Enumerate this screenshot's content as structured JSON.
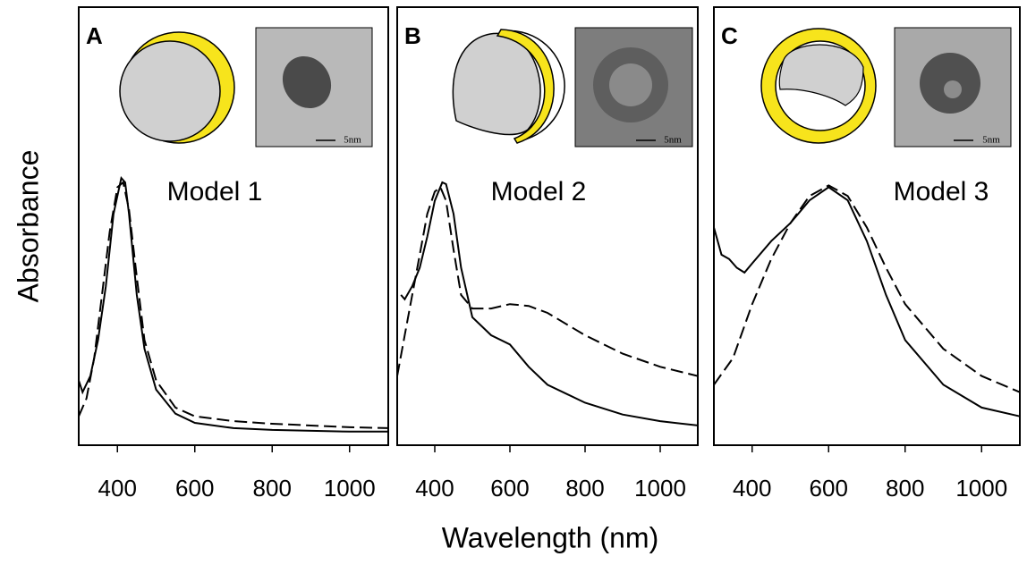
{
  "y_label": "Absorbance",
  "x_label": "Wavelength (nm)",
  "chart_data": [
    {
      "type": "line",
      "label": "A",
      "title": "Model 1",
      "scale_bar_label": "5nm",
      "xlim": [
        300,
        1100
      ],
      "ylim": [
        0,
        1
      ],
      "xticks": [
        400,
        600,
        800,
        1000
      ],
      "series": [
        {
          "color": "#000000",
          "dashed": false,
          "x": [
            300,
            310,
            330,
            350,
            370,
            390,
            410,
            420,
            430,
            450,
            470,
            500,
            550,
            600,
            700,
            800,
            1000,
            1100
          ],
          "values": [
            0.148,
            0.121,
            0.158,
            0.24,
            0.363,
            0.528,
            0.61,
            0.6,
            0.528,
            0.343,
            0.22,
            0.127,
            0.072,
            0.051,
            0.039,
            0.035,
            0.031,
            0.031
          ]
        },
        {
          "color": "#000000",
          "dashed": true,
          "x": [
            300,
            320,
            340,
            360,
            380,
            400,
            415,
            430,
            450,
            470,
            500,
            550,
            600,
            700,
            800,
            1000,
            1100
          ],
          "values": [
            0.066,
            0.107,
            0.199,
            0.343,
            0.487,
            0.589,
            0.6,
            0.538,
            0.384,
            0.24,
            0.148,
            0.086,
            0.066,
            0.055,
            0.049,
            0.041,
            0.039
          ]
        }
      ]
    },
    {
      "type": "line",
      "label": "B",
      "title": "Model 2",
      "scale_bar_label": "5nm",
      "xlim": [
        300,
        1100
      ],
      "ylim": [
        0,
        1
      ],
      "xticks": [
        400,
        600,
        800,
        1000
      ],
      "series": [
        {
          "color": "#000000",
          "dashed": false,
          "x": [
            310,
            320,
            340,
            360,
            380,
            400,
            420,
            430,
            450,
            470,
            500,
            550,
            600,
            650,
            700,
            800,
            900,
            1000,
            1100
          ],
          "values": [
            0.343,
            0.333,
            0.363,
            0.405,
            0.476,
            0.558,
            0.6,
            0.596,
            0.528,
            0.405,
            0.292,
            0.251,
            0.23,
            0.179,
            0.138,
            0.097,
            0.07,
            0.055,
            0.045
          ]
        },
        {
          "color": "#000000",
          "dashed": true,
          "x": [
            300,
            320,
            340,
            360,
            380,
            400,
            415,
            430,
            450,
            470,
            500,
            550,
            600,
            650,
            700,
            800,
            900,
            1000,
            1100
          ],
          "values": [
            0.158,
            0.251,
            0.343,
            0.435,
            0.528,
            0.579,
            0.589,
            0.558,
            0.446,
            0.343,
            0.312,
            0.312,
            0.322,
            0.318,
            0.302,
            0.251,
            0.209,
            0.179,
            0.158
          ]
        }
      ]
    },
    {
      "type": "line",
      "label": "C",
      "title": "Model 3",
      "scale_bar_label": "5nm",
      "xlim": [
        300,
        1100
      ],
      "ylim": [
        0,
        1
      ],
      "xticks": [
        400,
        600,
        800,
        1000
      ],
      "series": [
        {
          "color": "#000000",
          "dashed": false,
          "x": [
            300,
            320,
            340,
            360,
            380,
            400,
            450,
            500,
            550,
            600,
            650,
            700,
            750,
            800,
            900,
            1000,
            1100
          ],
          "values": [
            0.497,
            0.435,
            0.425,
            0.405,
            0.394,
            0.415,
            0.466,
            0.507,
            0.559,
            0.589,
            0.559,
            0.466,
            0.343,
            0.24,
            0.138,
            0.086,
            0.066
          ]
        },
        {
          "color": "#000000",
          "dashed": true,
          "x": [
            300,
            350,
            400,
            450,
            500,
            550,
            600,
            650,
            700,
            750,
            800,
            900,
            1000,
            1100
          ],
          "values": [
            0.138,
            0.199,
            0.322,
            0.425,
            0.507,
            0.569,
            0.593,
            0.569,
            0.497,
            0.405,
            0.322,
            0.22,
            0.158,
            0.121
          ]
        }
      ]
    }
  ]
}
